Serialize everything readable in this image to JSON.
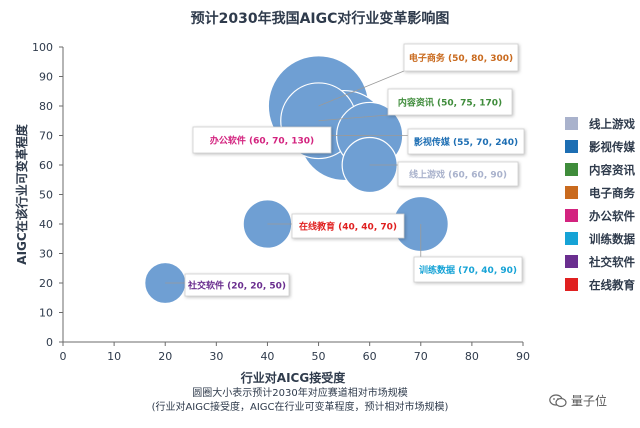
{
  "title": "预计2030年我国AIGC对行业变革影响图",
  "footnote": {
    "line1": "圆圈大小表示预计2030年对应赛道相对市场规模",
    "line2": "(行业对AIGC接受度，AIGC在行业可变革程度，预计相对市场规模)"
  },
  "watermark": "量子位",
  "colors": {
    "bubble": "#6f9fd3",
    "bubble_stroke": "#ffffff",
    "axis": "#6b6b6b",
    "text": "#2f3b4c"
  },
  "chart_data": {
    "type": "scatter",
    "title": "预计2030年我国AIGC对行业变革影响图",
    "xlabel": "行业对AICG接受度",
    "ylabel": "AIGC在该行业可变革程度",
    "xlim": [
      0,
      90
    ],
    "ylim": [
      0,
      100
    ],
    "xticks": [
      0,
      10,
      20,
      30,
      40,
      50,
      60,
      70,
      80,
      90
    ],
    "yticks": [
      0,
      10,
      20,
      30,
      40,
      50,
      60,
      70,
      80,
      90,
      100
    ],
    "grid": false,
    "legend_position": "right",
    "series": [
      {
        "name": "线上游戏",
        "x": 60,
        "y": 60,
        "size": 90,
        "color": "#a9b2cc",
        "label": "线上游戏  (60, 60, 90)"
      },
      {
        "name": "影视传媒",
        "x": 55,
        "y": 70,
        "size": 240,
        "color": "#1d6eb3",
        "label": "影视传媒  (55, 70, 240)"
      },
      {
        "name": "内容资讯",
        "x": 50,
        "y": 75,
        "size": 170,
        "color": "#3f8c3b",
        "label": "内容资讯  (50, 75, 170)"
      },
      {
        "name": "电子商务",
        "x": 50,
        "y": 80,
        "size": 300,
        "color": "#c96a1e",
        "label": "电子商务  (50, 80, 300)"
      },
      {
        "name": "办公软件",
        "x": 60,
        "y": 70,
        "size": 130,
        "color": "#d3237f",
        "label": "办公软件  (60, 70, 130)"
      },
      {
        "name": "训练数据",
        "x": 70,
        "y": 40,
        "size": 90,
        "color": "#16a3d6",
        "label": "训练数据  (70, 40, 90)"
      },
      {
        "name": "社交软件",
        "x": 20,
        "y": 20,
        "size": 50,
        "color": "#6a2e8f",
        "label": "社交软件  (20, 20, 50)"
      },
      {
        "name": "在线教育",
        "x": 40,
        "y": 40,
        "size": 70,
        "color": "#e02020",
        "label": "在线教育  (40, 40, 70)"
      }
    ]
  }
}
